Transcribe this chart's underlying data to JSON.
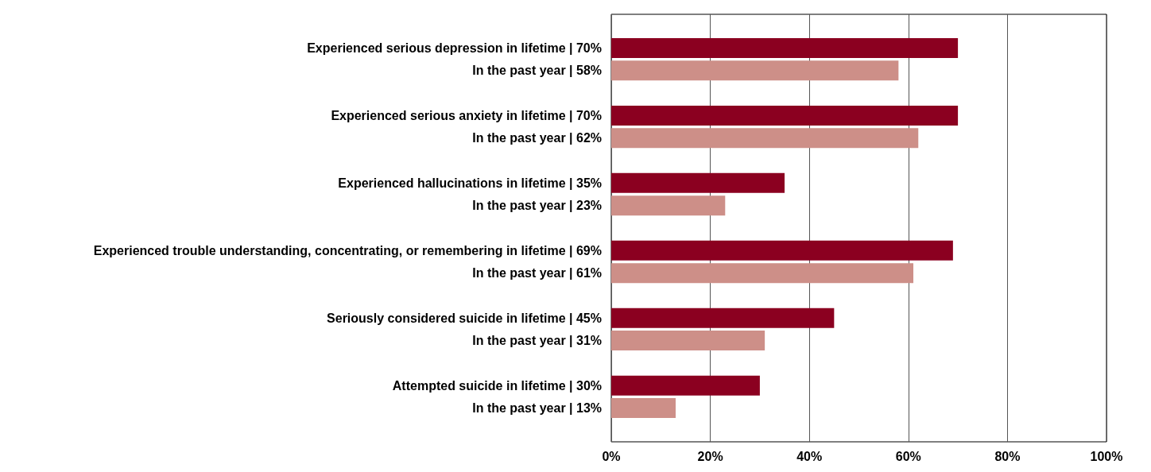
{
  "chart_data": {
    "type": "bar",
    "orientation": "horizontal",
    "categories": [
      null,
      "Experienced serious depression in lifetime | 70%",
      "In the past year | 58%",
      null,
      "Experienced serious anxiety in lifetime | 70%",
      "In the past year | 62%",
      null,
      "Experienced hallucinations in lifetime | 35%",
      "In the past year | 23%",
      null,
      "Experienced trouble understanding, concentrating, or remembering in lifetime | 69%",
      "In the past year | 61%",
      null,
      "Seriously considered suicide in lifetime | 45%",
      "In the past year | 31%",
      null,
      "Attempted suicide in lifetime | 30%",
      "In the past year | 13%",
      null
    ],
    "values": [
      null,
      70,
      58,
      null,
      70,
      62,
      null,
      35,
      23,
      null,
      69,
      61,
      null,
      45,
      31,
      null,
      30,
      13,
      null
    ],
    "colors": [
      null,
      "#8b0020",
      "#cd8f88",
      null,
      "#8b0020",
      "#cd8f88",
      null,
      "#8b0020",
      "#cd8f88",
      null,
      "#8b0020",
      "#cd8f88",
      null,
      "#8b0020",
      "#cd8f88",
      null,
      "#8b0020",
      "#cd8f88",
      null
    ],
    "xlim": [
      0,
      100
    ],
    "xticks": [
      {
        "value": 0,
        "label": "0%"
      },
      {
        "value": 20,
        "label": "20%"
      },
      {
        "value": 40,
        "label": "40%"
      },
      {
        "value": 60,
        "label": "60%"
      },
      {
        "value": 80,
        "label": "80%"
      },
      {
        "value": 100,
        "label": "100%"
      }
    ],
    "grid": "x"
  }
}
